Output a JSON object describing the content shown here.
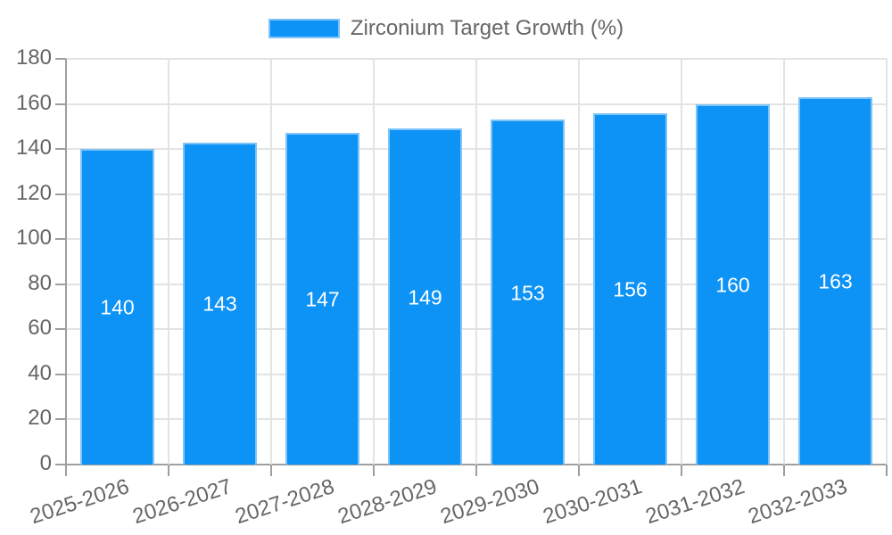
{
  "legend": {
    "label": "Zirconium Target Growth (%)"
  },
  "chart_data": {
    "type": "bar",
    "title": "Zirconium Target Growth (%)",
    "series_name": "Zirconium Target Growth (%)",
    "categories": [
      "2025-2026",
      "2026-2027",
      "2027-2028",
      "2028-2029",
      "2029-2030",
      "2030-2031",
      "2031-2032",
      "2032-2033"
    ],
    "values": [
      140,
      143,
      147,
      149,
      153,
      156,
      160,
      163
    ],
    "xlabel": "",
    "ylabel": "",
    "ylim": [
      0,
      180
    ],
    "yticks": [
      0,
      20,
      40,
      60,
      80,
      100,
      120,
      140,
      160,
      180
    ],
    "grid": true,
    "legend_position": "top-center",
    "value_labels_position": "inside-center",
    "x_tick_rotation_deg": -18,
    "colors": {
      "bar_fill": "#0d92f5",
      "bar_border": "#7fc4f8",
      "value_label": "#ffffff",
      "grid_line": "#e3e3e3",
      "axis_line": "#9e9e9e",
      "tick_label": "#666666",
      "legend_text": "#666666",
      "background": "#ffffff"
    }
  }
}
